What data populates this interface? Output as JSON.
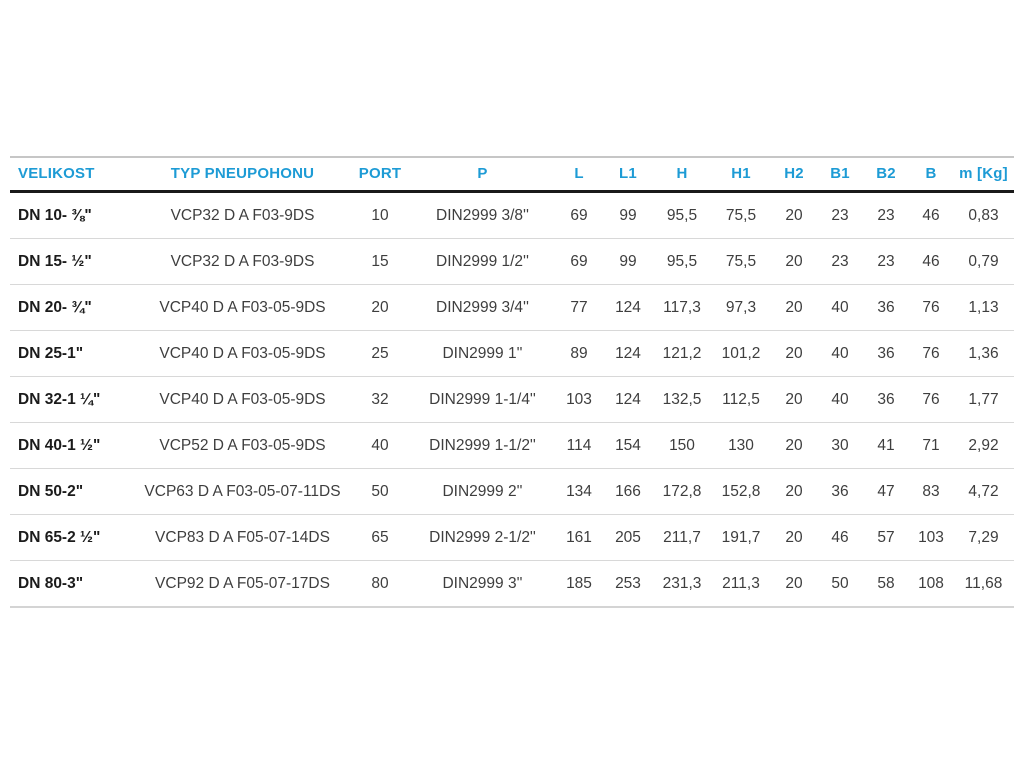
{
  "page": {
    "background_color": "#ffffff",
    "accent_color": "#1d9bd5",
    "text_color": "#3e3e3e"
  },
  "table": {
    "columns": [
      {
        "key": "velikost",
        "label": "VELIKOST",
        "align": "left"
      },
      {
        "key": "typ_pneupohonu",
        "label": "TYP PNEUPOHONU",
        "align": "center"
      },
      {
        "key": "port",
        "label": "PORT",
        "align": "center"
      },
      {
        "key": "p",
        "label": "P",
        "align": "center"
      },
      {
        "key": "l",
        "label": "L",
        "align": "center"
      },
      {
        "key": "l1",
        "label": "L1",
        "align": "center"
      },
      {
        "key": "h",
        "label": "H",
        "align": "center"
      },
      {
        "key": "h1",
        "label": "H1",
        "align": "center"
      },
      {
        "key": "h2",
        "label": "H2",
        "align": "center"
      },
      {
        "key": "b1",
        "label": "B1",
        "align": "center"
      },
      {
        "key": "b2",
        "label": "B2",
        "align": "center"
      },
      {
        "key": "b",
        "label": "B",
        "align": "center"
      },
      {
        "key": "m",
        "label": "m [Kg]",
        "align": "center"
      }
    ],
    "rows": [
      [
        "DN 10- ⅜\"",
        "VCP32 D A F03-9DS",
        "10",
        "DIN2999 3/8''",
        "69",
        "99",
        "95,5",
        "75,5",
        "20",
        "23",
        "23",
        "46",
        "0,83"
      ],
      [
        "DN 15- ½\"",
        "VCP32 D A F03-9DS",
        "15",
        "DIN2999 1/2''",
        "69",
        "99",
        "95,5",
        "75,5",
        "20",
        "23",
        "23",
        "46",
        "0,79"
      ],
      [
        "DN 20- ¾\"",
        "VCP40 D A F03-05-9DS",
        "20",
        "DIN2999 3/4''",
        "77",
        "124",
        "117,3",
        "97,3",
        "20",
        "40",
        "36",
        "76",
        "1,13"
      ],
      [
        "DN 25-1\"",
        "VCP40 D A F03-05-9DS",
        "25",
        "DIN2999 1''",
        "89",
        "124",
        "121,2",
        "101,2",
        "20",
        "40",
        "36",
        "76",
        "1,36"
      ],
      [
        "DN 32-1 ¼\"",
        "VCP40 D A F03-05-9DS",
        "32",
        "DIN2999 1-1/4''",
        "103",
        "124",
        "132,5",
        "112,5",
        "20",
        "40",
        "36",
        "76",
        "1,77"
      ],
      [
        "DN 40-1 ½\"",
        "VCP52 D A F03-05-9DS",
        "40",
        "DIN2999 1-1/2''",
        "114",
        "154",
        "150",
        "130",
        "20",
        "30",
        "41",
        "71",
        "2,92"
      ],
      [
        "DN 50-2\"",
        "VCP63 D A F03-05-07-11DS",
        "50",
        "DIN2999 2''",
        "134",
        "166",
        "172,8",
        "152,8",
        "20",
        "36",
        "47",
        "83",
        "4,72"
      ],
      [
        "DN 65-2 ½\"",
        "VCP83 D A F05-07-14DS",
        "65",
        "DIN2999 2-1/2''",
        "161",
        "205",
        "211,7",
        "191,7",
        "20",
        "46",
        "57",
        "103",
        "7,29"
      ],
      [
        "DN 80-3\"",
        "VCP92 D A F05-07-17DS",
        "80",
        "DIN2999 3''",
        "185",
        "253",
        "231,3",
        "211,3",
        "20",
        "50",
        "58",
        "108",
        "11,68"
      ]
    ]
  }
}
